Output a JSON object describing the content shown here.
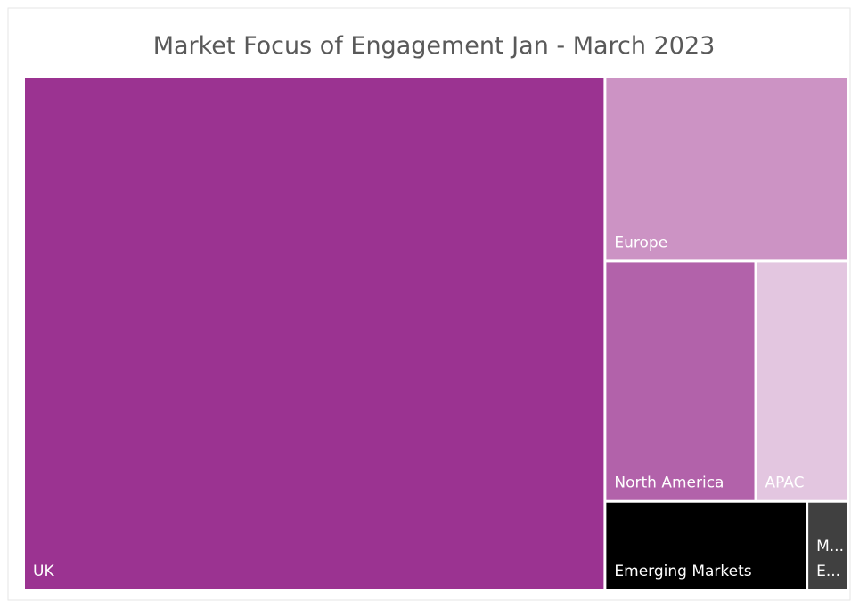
{
  "chart_data": {
    "type": "treemap",
    "title": "Market Focus of Engagement Jan - March 2023",
    "categories": [
      "UK",
      "Europe",
      "North America",
      "APAC",
      "Emerging Markets",
      [
        "M...",
        "E..."
      ]
    ],
    "values": [
      70,
      10.5,
      8.5,
      5.2,
      4.2,
      0.85
    ],
    "colors": [
      "#9b3391",
      "#cc93c4",
      "#b262aa",
      "#e3c6e0",
      "#000000",
      "#404040"
    ]
  }
}
